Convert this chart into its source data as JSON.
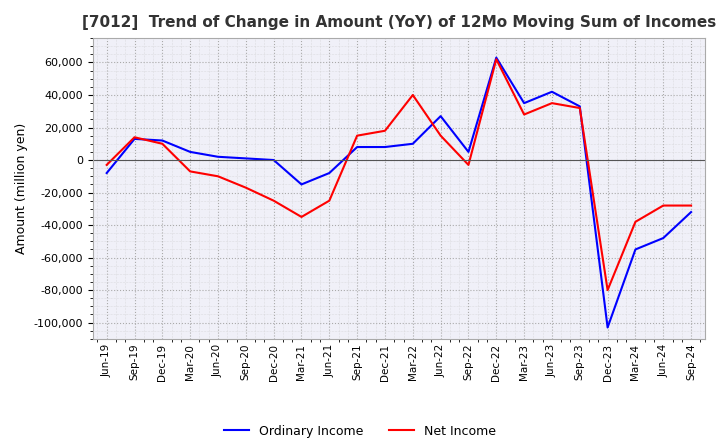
{
  "title": "[7012]  Trend of Change in Amount (YoY) of 12Mo Moving Sum of Incomes",
  "ylabel": "Amount (million yen)",
  "background_color": "#ffffff",
  "plot_bg_color": "#f0f0f8",
  "grid_color": "#aaaaaa",
  "ordinary_income_color": "#0000ff",
  "net_income_color": "#ff0000",
  "ylim": [
    -110000,
    75000
  ],
  "yticks": [
    -100000,
    -80000,
    -60000,
    -40000,
    -20000,
    0,
    20000,
    40000,
    60000
  ],
  "x_labels": [
    "Jun-19",
    "Sep-19",
    "Dec-19",
    "Mar-20",
    "Jun-20",
    "Sep-20",
    "Dec-20",
    "Mar-21",
    "Jun-21",
    "Sep-21",
    "Dec-21",
    "Mar-22",
    "Jun-22",
    "Sep-22",
    "Dec-22",
    "Mar-23",
    "Jun-23",
    "Sep-23",
    "Dec-23",
    "Mar-24",
    "Jun-24",
    "Sep-24"
  ],
  "ordinary_income": [
    -8000,
    13000,
    12000,
    5000,
    2000,
    1000,
    0,
    -15000,
    -8000,
    8000,
    8000,
    10000,
    27000,
    5000,
    63000,
    35000,
    42000,
    33000,
    -103000,
    -55000,
    -48000,
    -32000
  ],
  "net_income": [
    -3000,
    14000,
    10000,
    -7000,
    -10000,
    -17000,
    -25000,
    -35000,
    -25000,
    15000,
    18000,
    40000,
    15000,
    -3000,
    62000,
    28000,
    35000,
    32000,
    -80000,
    -38000,
    -28000,
    -28000
  ]
}
